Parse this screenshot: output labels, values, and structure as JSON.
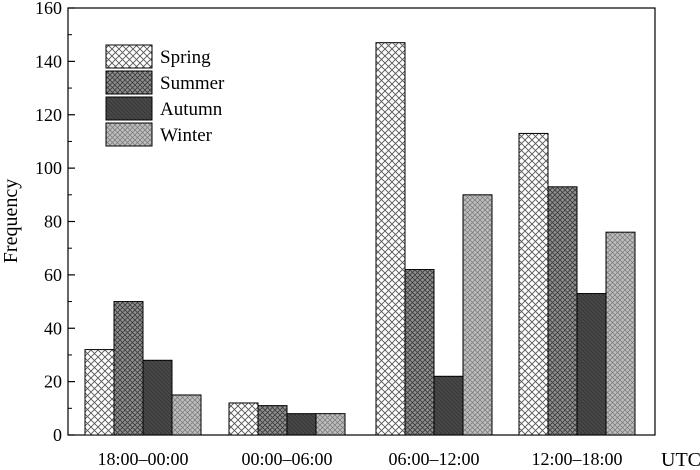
{
  "chart_data": {
    "type": "bar",
    "title": "",
    "xlabel": "UTC",
    "ylabel": "Frequency",
    "ylim": [
      0,
      160
    ],
    "yticks": [
      "0",
      "20",
      "40",
      "60",
      "80",
      "100",
      "120",
      "140",
      "160"
    ],
    "categories": [
      "18:00–00:00",
      "00:00–06:00",
      "06:00–12:00",
      "12:00–18:00"
    ],
    "series": [
      {
        "name": "Spring",
        "values": [
          32,
          12,
          147,
          113
        ]
      },
      {
        "name": "Summer",
        "values": [
          50,
          11,
          62,
          93
        ]
      },
      {
        "name": "Autumn",
        "values": [
          28,
          8,
          22,
          53
        ]
      },
      {
        "name": "Winter",
        "values": [
          15,
          8,
          90,
          76
        ]
      }
    ],
    "legend_position": "top-left",
    "grid": false
  }
}
